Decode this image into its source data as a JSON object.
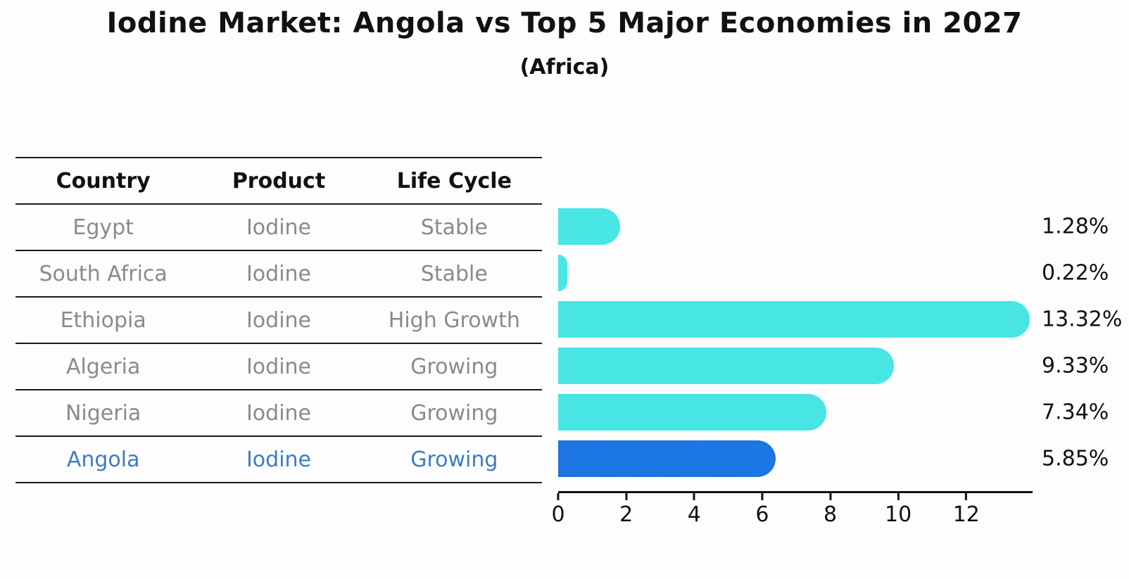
{
  "title": "Iodine Market: Angola vs Top 5 Major Economies in 2027",
  "subtitle": "(Africa)",
  "table": {
    "headers": [
      "Country",
      "Product",
      "Life Cycle"
    ],
    "rows": [
      {
        "country": "Egypt",
        "product": "Iodine",
        "life_cycle": "Stable"
      },
      {
        "country": "South Africa",
        "product": "Iodine",
        "life_cycle": "Stable"
      },
      {
        "country": "Ethiopia",
        "product": "Iodine",
        "life_cycle": "High Growth"
      },
      {
        "country": "Algeria",
        "product": "Iodine",
        "life_cycle": "Growing"
      },
      {
        "country": "Nigeria",
        "product": "Iodine",
        "life_cycle": "Growing"
      },
      {
        "country": "Angola",
        "product": "Iodine",
        "life_cycle": "Growing"
      }
    ],
    "highlighted_row": "Angola"
  },
  "chart_data": {
    "type": "bar",
    "orientation": "horizontal",
    "categories": [
      "Egypt",
      "South Africa",
      "Ethiopia",
      "Algeria",
      "Nigeria",
      "Angola"
    ],
    "values": [
      1.28,
      0.22,
      13.32,
      9.33,
      7.34,
      5.85
    ],
    "value_labels": [
      "1.28%",
      "0.22%",
      "13.32%",
      "9.33%",
      "7.34%",
      "5.85%"
    ],
    "xticks": [
      0,
      2,
      4,
      6,
      8,
      10,
      12
    ],
    "xlim": [
      0,
      13.95
    ],
    "grid": false,
    "legend": false,
    "highlight_category": "Angola",
    "colors": {
      "bar": "#48E5E5",
      "highlight_bar": "#1C76E4",
      "highlight_edge": "#2470D4",
      "highlight_text": "#3A7DC8",
      "row_text": "#8A8A8A",
      "text": "#111111"
    }
  }
}
